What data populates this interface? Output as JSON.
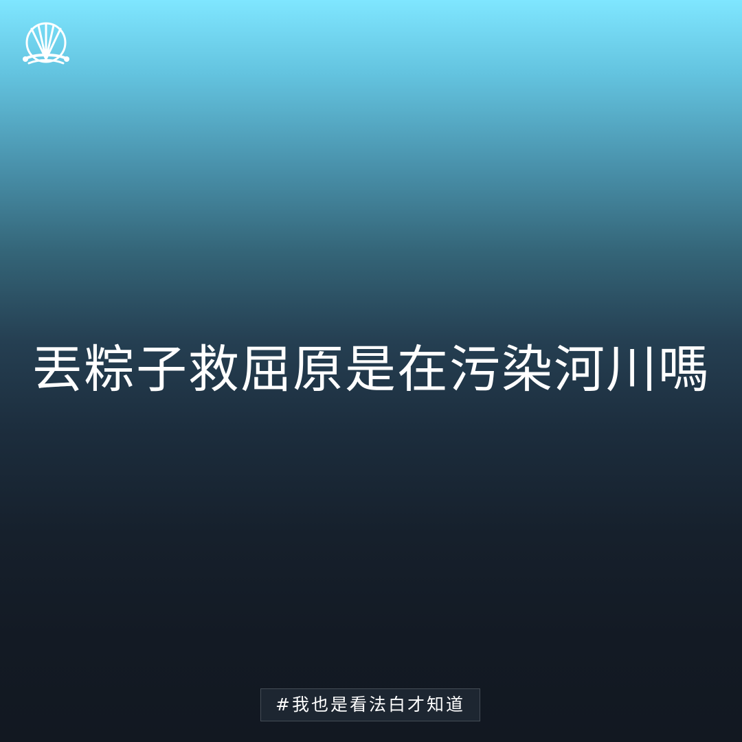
{
  "logo": {
    "icon": "fan-on-water-icon"
  },
  "headline": {
    "text": "丟粽子救屈原是在污染河川嗎"
  },
  "hashtag": {
    "text": "#我也是看法白才知道"
  },
  "colors": {
    "gradient_top": "#7fe6ff",
    "gradient_bottom": "#121821",
    "text": "#ffffff",
    "hashtag_bg": "#202a36"
  }
}
